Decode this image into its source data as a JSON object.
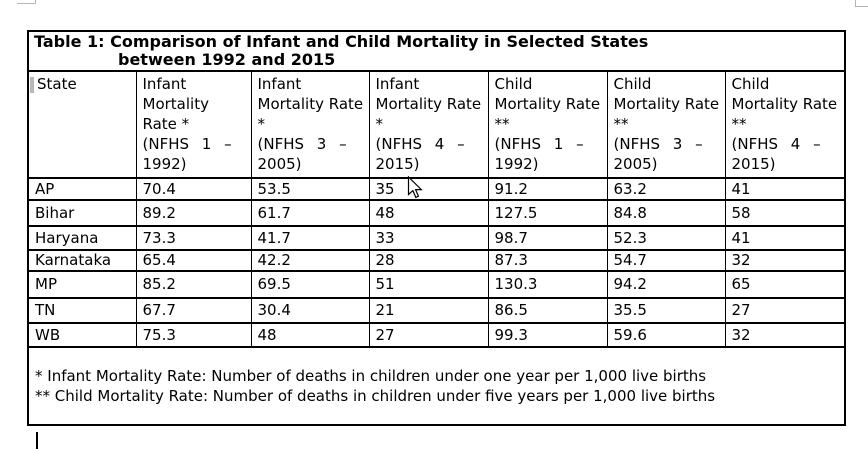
{
  "page": {
    "background": "#ffffff",
    "border_color": "#000000",
    "marker_gray": "#b8b8b8"
  },
  "window_fragments": {
    "top_left": "partial-box-corner",
    "top_right": "partial-box-corner"
  },
  "table": {
    "title_line1": "Table 1: Comparison of Infant and Child Mortality in Selected States",
    "title_line2": "between 1992 and 2015",
    "state_column_header": "State",
    "columns": [
      {
        "metric": "Infant Mortality Rate *",
        "survey_line": "(NFHS 1 –",
        "survey_year": "1992)"
      },
      {
        "metric": "Infant Mortality Rate *",
        "survey_line": "(NFHS 3 –",
        "survey_year": "2005)"
      },
      {
        "metric": "Infant Mortality Rate *",
        "survey_line": "(NFHS 4 –",
        "survey_year": "2015)"
      },
      {
        "metric": "Child Mortality Rate **",
        "survey_line": "(NFHS 1 –",
        "survey_year": "1992)"
      },
      {
        "metric": "Child Mortality Rate **",
        "survey_line": "(NFHS 3 –",
        "survey_year": "2005)"
      },
      {
        "metric": "Child Mortality Rate **",
        "survey_line": "(NFHS 4 –",
        "survey_year": "2015)"
      }
    ],
    "rows": [
      {
        "state": "AP",
        "values": [
          "70.4",
          "53.5",
          "35",
          "91.2",
          "63.2",
          "41"
        ]
      },
      {
        "state": "Bihar",
        "values": [
          "89.2",
          "61.7",
          "48",
          "127.5",
          "84.8",
          "58"
        ]
      },
      {
        "state": "Haryana",
        "values": [
          "73.3",
          "41.7",
          "33",
          "98.7",
          "52.3",
          "41"
        ]
      },
      {
        "state": "Karnataka",
        "values": [
          "65.4",
          "42.2",
          "28",
          "87.3",
          "54.7",
          "32"
        ]
      },
      {
        "state": "MP",
        "values": [
          "85.2",
          "69.5",
          "51",
          "130.3",
          "94.2",
          "65"
        ]
      },
      {
        "state": "TN",
        "values": [
          "67.7",
          "30.4",
          "21",
          "86.5",
          "35.5",
          "27"
        ]
      },
      {
        "state": "WB",
        "values": [
          "75.3",
          "48",
          "27",
          "99.3",
          "59.6",
          "32"
        ]
      }
    ],
    "footnotes": [
      "* Infant Mortality Rate: Number of deaths in children under one year per 1,000 live births",
      "** Child Mortality Rate: Number of deaths in children under five years per 1,000 live births"
    ]
  },
  "indicators": {
    "mouse_cursor": "arrow-pointer-icon",
    "text_caret": "insertion-caret"
  }
}
